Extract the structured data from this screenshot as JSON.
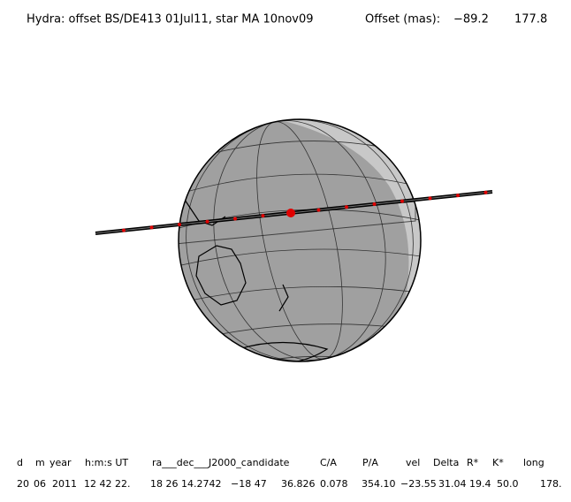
{
  "header": {
    "title": "Hydra: offset BS/DE413 01Jul11, star MA 10nov09",
    "offset_label": "Offset (mas):",
    "offset_values": [
      "−89.2",
      "177.8"
    ]
  },
  "table": {
    "columns": [
      "d",
      "m",
      "year",
      "h:m:s UT",
      "ra___dec___J2000_candidate",
      "C/A",
      "P/A",
      "vel",
      "Delta",
      "R*",
      "K*",
      "long"
    ],
    "values": [
      "20",
      "06",
      "2011",
      "12 42 22.",
      "18 26 14.2742",
      "−18 47",
      "36.826",
      "0.078",
      "354.10",
      "−23.55",
      "31.04",
      "19.4",
      "50.0",
      "178."
    ]
  }
}
